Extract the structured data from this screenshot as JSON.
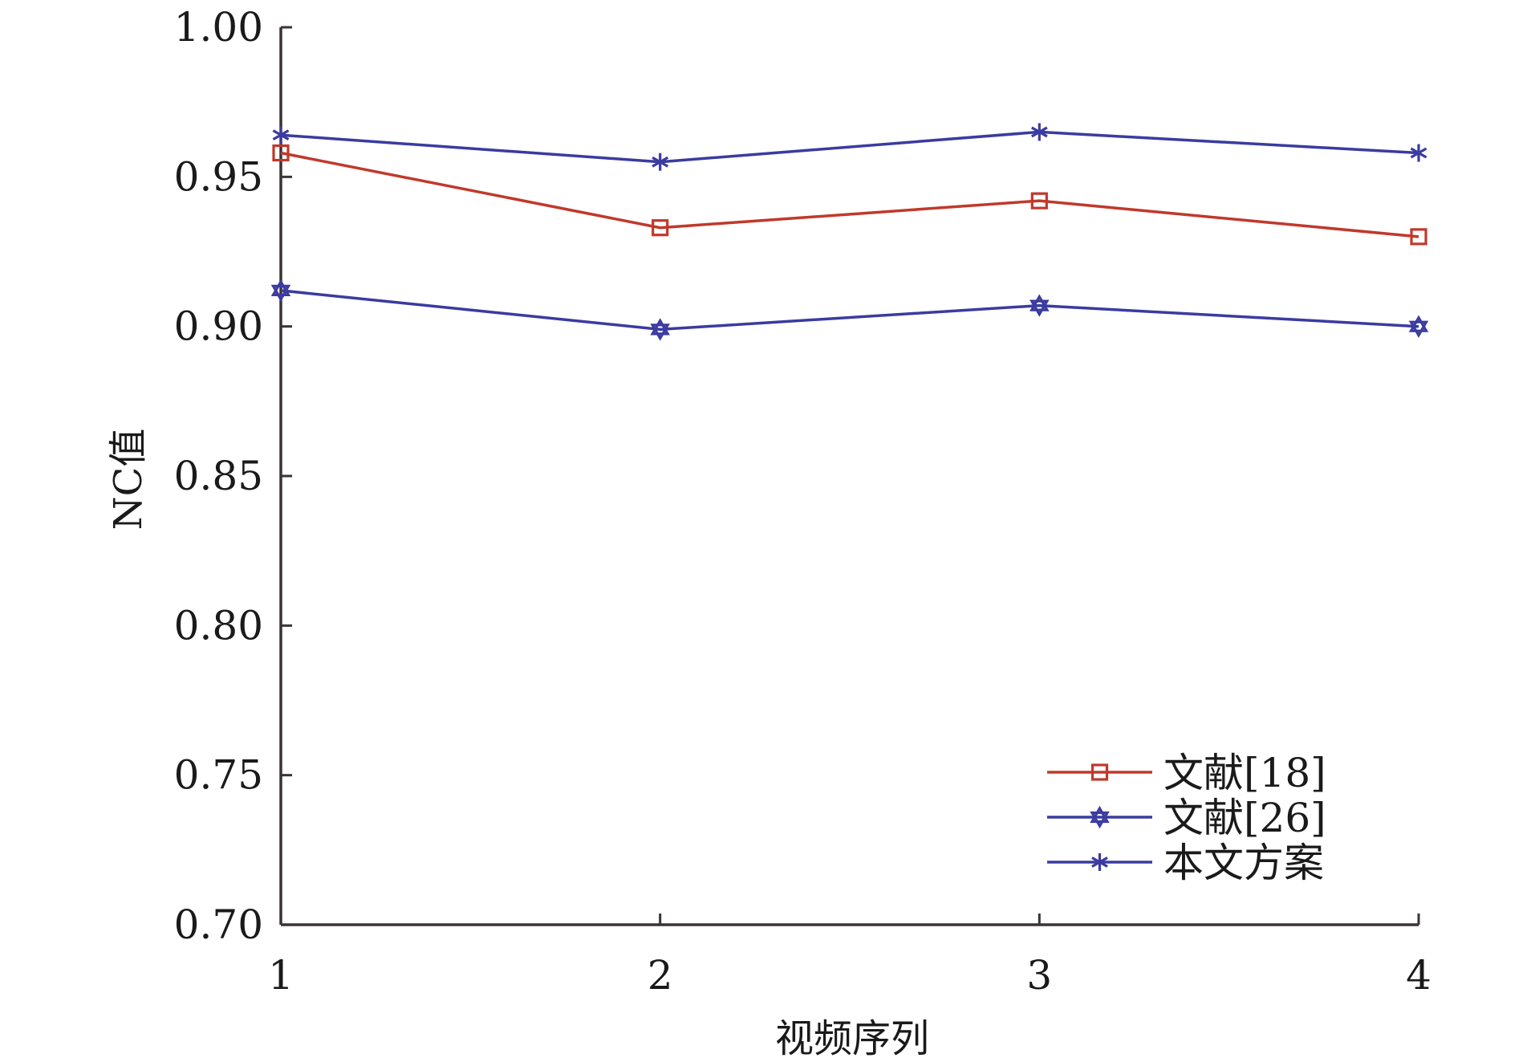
{
  "chart_data": {
    "type": "line",
    "xlabel": "视频序列",
    "ylabel": "NC值",
    "x": [
      1,
      2,
      3,
      4
    ],
    "x_tick_labels": [
      "1",
      "2",
      "3",
      "4"
    ],
    "xlim": [
      1,
      4
    ],
    "ylim": [
      0.7,
      1.0
    ],
    "y_ticks": [
      0.7,
      0.75,
      0.8,
      0.85,
      0.9,
      0.95,
      1.0
    ],
    "y_tick_labels": [
      "0.70",
      "0.75",
      "0.80",
      "0.85",
      "0.90",
      "0.95",
      "1.00"
    ],
    "grid": false,
    "legend_position": "bottom-right",
    "series": [
      {
        "name": "文献[18]",
        "values": [
          0.958,
          0.933,
          0.942,
          0.93
        ],
        "color": "#c0392b",
        "marker": "square"
      },
      {
        "name": "文献[26]",
        "values": [
          0.912,
          0.899,
          0.907,
          0.9
        ],
        "color": "#3b3ba0",
        "marker": "hexagram"
      },
      {
        "name": "本文方案",
        "values": [
          0.964,
          0.955,
          0.965,
          0.958
        ],
        "color": "#3b3ba0",
        "marker": "asterisk"
      }
    ]
  }
}
